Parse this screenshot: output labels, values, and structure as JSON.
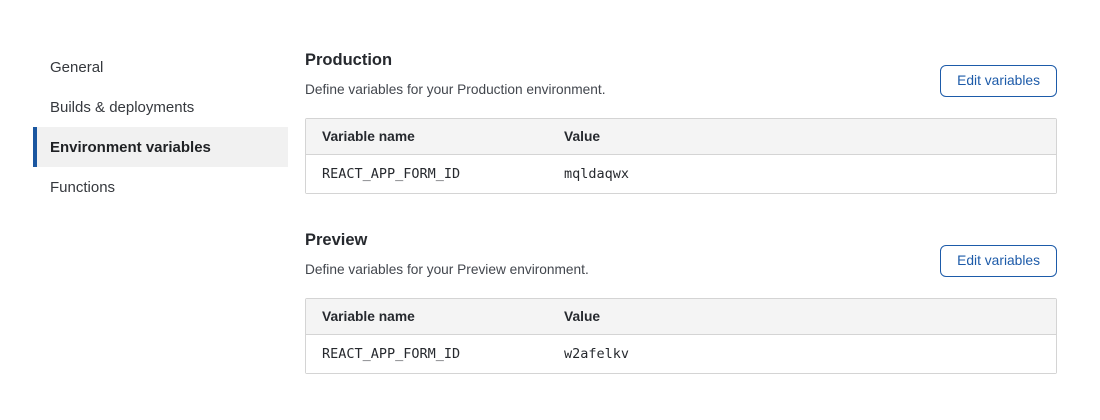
{
  "sidebar": {
    "items": [
      {
        "label": "General",
        "active": false
      },
      {
        "label": "Builds & deployments",
        "active": false
      },
      {
        "label": "Environment variables",
        "active": true
      },
      {
        "label": "Functions",
        "active": false
      }
    ]
  },
  "sections": [
    {
      "title": "Production",
      "description": "Define variables for your Production environment.",
      "button_label": "Edit variables",
      "table": {
        "columns": [
          "Variable name",
          "Value"
        ],
        "rows": [
          {
            "name": "REACT_APP_FORM_ID",
            "value": "mqldaqwx"
          }
        ]
      }
    },
    {
      "title": "Preview",
      "description": "Define variables for your Preview environment.",
      "button_label": "Edit variables",
      "table": {
        "columns": [
          "Variable name",
          "Value"
        ],
        "rows": [
          {
            "name": "REACT_APP_FORM_ID",
            "value": "w2afelkv"
          }
        ]
      }
    }
  ],
  "colors": {
    "accent_blue": "#1d5ba9",
    "active_nav_bar": "#1a56a0",
    "active_nav_bg": "#f1f1f1",
    "table_header_bg": "#f4f4f4",
    "table_border": "#d4d4d4"
  }
}
